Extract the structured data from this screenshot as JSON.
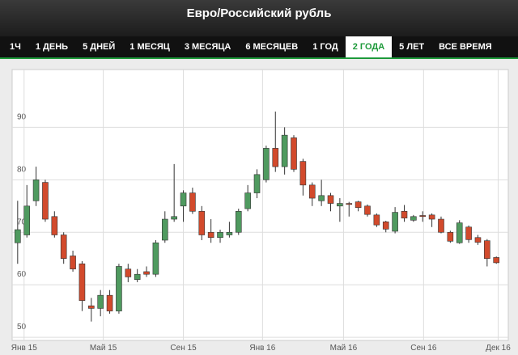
{
  "header": {
    "title": "Евро/Российский рубль"
  },
  "tabs": {
    "items": [
      "1Ч",
      "1 ДЕНЬ",
      "5 ДНЕЙ",
      "1 МЕСЯЦ",
      "3 МЕСЯЦА",
      "6 МЕСЯЦЕВ",
      "1 ГОД",
      "2 ГОДА",
      "5 ЛЕТ",
      "ВСЕ ВРЕМЯ"
    ],
    "selected": 7
  },
  "chart_data": {
    "type": "candlestick",
    "open": [
      68,
      69.5,
      76,
      79.5,
      73,
      69.5,
      65.5,
      64,
      56,
      55.5,
      58,
      55,
      63,
      61,
      62.5,
      62,
      68.5,
      72.5,
      75,
      77.5,
      74,
      70,
      69,
      69.5,
      70,
      74.5,
      77.5,
      80,
      86,
      82.5,
      88,
      83.5,
      79,
      76,
      77,
      75,
      75.5,
      75.8,
      75,
      73.3,
      72,
      70.2,
      74,
      72.3,
      73.2,
      73.3,
      72.5,
      70,
      68,
      71,
      69,
      68.4,
      65.2
    ],
    "high": [
      76,
      79,
      82.5,
      80,
      74,
      70,
      66.5,
      64.5,
      57.5,
      59,
      59,
      64,
      64,
      63,
      63.5,
      68.5,
      74,
      83,
      78,
      78.5,
      75,
      72.5,
      70.5,
      72,
      74.5,
      79,
      82,
      86.5,
      93,
      90,
      88.5,
      84,
      79.5,
      80,
      77.5,
      76.5,
      75.8,
      76,
      75.3,
      73.6,
      72.2,
      74.8,
      75.2,
      73.3,
      74,
      73.6,
      73,
      70.3,
      72.3,
      71.3,
      69.5,
      68.7,
      65.4
    ],
    "low": [
      64,
      69,
      75,
      72,
      69,
      64,
      62.5,
      55,
      53,
      54,
      54.5,
      54.5,
      60.5,
      60.5,
      61.5,
      61.5,
      68,
      72,
      72,
      73.5,
      68.5,
      68,
      68,
      69,
      69.5,
      74,
      76.5,
      79.5,
      81.5,
      81,
      81.5,
      77,
      75,
      75,
      74,
      72,
      73,
      74,
      73,
      71,
      70,
      69.8,
      72,
      72,
      72,
      71,
      69.8,
      68,
      67.8,
      68,
      67.6,
      63.5,
      64
    ],
    "close": [
      70.5,
      75,
      80,
      72.5,
      69.5,
      65,
      63,
      57,
      55.5,
      58,
      55,
      63.5,
      61.5,
      62,
      62,
      68,
      72.5,
      73,
      77.5,
      74,
      69.5,
      69,
      70,
      70,
      74,
      77.5,
      81,
      86,
      82.5,
      88.5,
      82,
      79,
      76.5,
      77,
      75.5,
      75.5,
      75.3,
      74.7,
      73.4,
      71.4,
      70.6,
      73.8,
      72.7,
      73,
      73,
      72.5,
      70,
      68.3,
      71.8,
      68.6,
      68.1,
      65,
      64.2
    ],
    "up_color": "#4f9a5f",
    "down_color": "#d24a2c",
    "xlim": [
      -0.6,
      53.3
    ],
    "xticks": [
      {
        "value": 0.7,
        "label": "Янв 15"
      },
      {
        "value": 9.3,
        "label": "Май 15"
      },
      {
        "value": 18,
        "label": "Сен 15"
      },
      {
        "value": 26.6,
        "label": "Янв 16"
      },
      {
        "value": 35.4,
        "label": "Май 16"
      },
      {
        "value": 44.1,
        "label": "Сен 16"
      },
      {
        "value": 52.2,
        "label": "Дек 16"
      }
    ],
    "ylim": [
      49.4,
      101
    ],
    "yticks": [
      50,
      60,
      70,
      80,
      90
    ],
    "grid": true
  }
}
